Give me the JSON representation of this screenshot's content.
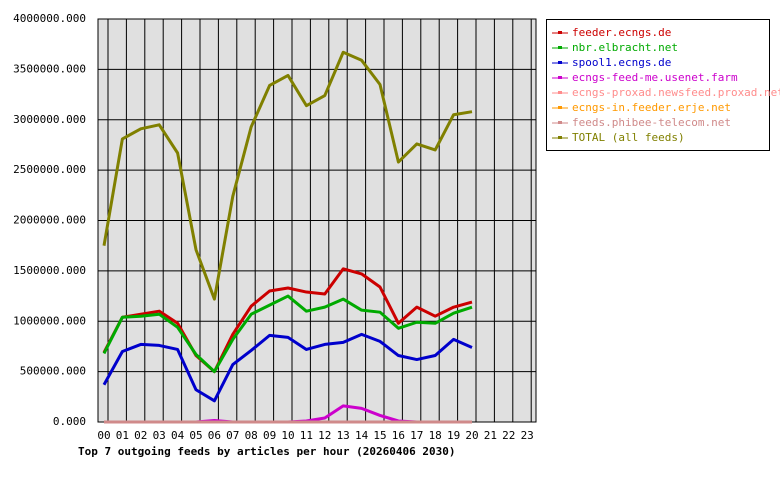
{
  "chart_data": {
    "type": "line",
    "title": "Top 7 outgoing feeds by articles per hour (20260406 2030)",
    "categories": [
      "00",
      "01",
      "02",
      "03",
      "04",
      "05",
      "06",
      "07",
      "08",
      "09",
      "10",
      "11",
      "12",
      "13",
      "14",
      "15",
      "16",
      "17",
      "18",
      "19",
      "20",
      "21",
      "22",
      "23"
    ],
    "ylim": [
      0,
      4000000
    ],
    "yticks": [
      {
        "value": 0,
        "label": "0.000"
      },
      {
        "value": 500000,
        "label": "500000.000"
      },
      {
        "value": 1000000,
        "label": "1000000.000"
      },
      {
        "value": 1500000,
        "label": "1500000.000"
      },
      {
        "value": 2000000,
        "label": "2000000.000"
      },
      {
        "value": 2500000,
        "label": "2500000.000"
      },
      {
        "value": 3000000,
        "label": "3000000.000"
      },
      {
        "value": 3500000,
        "label": "3500000.000"
      },
      {
        "value": 4000000,
        "label": "4000000.000"
      }
    ],
    "grid": true,
    "legend": "right",
    "series": [
      {
        "name": "feeder.ecngs.de",
        "color": "#cc0000",
        "values": [
          690000,
          1040000,
          1070000,
          1100000,
          980000,
          660000,
          500000,
          870000,
          1150000,
          1300000,
          1330000,
          1290000,
          1270000,
          1520000,
          1470000,
          1340000,
          980000,
          1140000,
          1050000,
          1140000,
          1190000,
          null,
          null,
          null
        ]
      },
      {
        "name": "nbr.elbracht.net",
        "color": "#00aa00",
        "values": [
          680000,
          1040000,
          1050000,
          1070000,
          940000,
          670000,
          500000,
          820000,
          1070000,
          1160000,
          1250000,
          1100000,
          1140000,
          1220000,
          1110000,
          1090000,
          930000,
          990000,
          980000,
          1080000,
          1140000,
          null,
          null,
          null
        ]
      },
      {
        "name": "spool1.ecngs.de",
        "color": "#0000cc",
        "values": [
          370000,
          700000,
          770000,
          760000,
          720000,
          320000,
          210000,
          570000,
          710000,
          860000,
          840000,
          720000,
          770000,
          790000,
          870000,
          800000,
          660000,
          620000,
          660000,
          820000,
          740000,
          null,
          null,
          null
        ]
      },
      {
        "name": "ecngs-feed-me.usenet.farm",
        "color": "#cc00cc",
        "values": [
          0,
          0,
          0,
          0,
          0,
          0,
          15000,
          0,
          0,
          0,
          0,
          10000,
          40000,
          160000,
          135000,
          65000,
          10000,
          0,
          0,
          0,
          0,
          null,
          null,
          null
        ]
      },
      {
        "name": "ecngs-proxad.newsfeed.proxad.net",
        "color": "#ff8c8c",
        "values": [
          0,
          0,
          0,
          0,
          0,
          0,
          0,
          0,
          0,
          0,
          0,
          0,
          0,
          0,
          0,
          0,
          0,
          0,
          0,
          0,
          0,
          null,
          null,
          null
        ]
      },
      {
        "name": "ecngs-in.feeder.erje.net",
        "color": "#ff9900",
        "values": [
          0,
          0,
          0,
          0,
          0,
          0,
          0,
          0,
          0,
          0,
          0,
          0,
          0,
          0,
          0,
          0,
          0,
          0,
          0,
          0,
          0,
          null,
          null,
          null
        ]
      },
      {
        "name": "feeds.phibee-telecom.net",
        "color": "#d08a8a",
        "values": [
          0,
          0,
          0,
          0,
          0,
          0,
          0,
          0,
          0,
          0,
          0,
          0,
          0,
          0,
          0,
          0,
          0,
          0,
          0,
          0,
          0,
          null,
          null,
          null
        ]
      },
      {
        "name": "TOTAL (all feeds)",
        "color": "#808000",
        "values": [
          1750000,
          2810000,
          2910000,
          2950000,
          2670000,
          1710000,
          1220000,
          2240000,
          2930000,
          3340000,
          3440000,
          3140000,
          3240000,
          3670000,
          3590000,
          3350000,
          2580000,
          2760000,
          2700000,
          3050000,
          3080000,
          null,
          null,
          null
        ]
      }
    ]
  }
}
